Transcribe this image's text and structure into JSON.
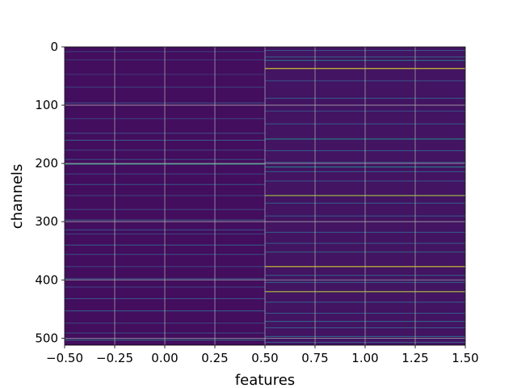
{
  "chart_data": {
    "type": "heatmap",
    "title": "",
    "xlabel": "features",
    "ylabel": "channels",
    "xlim": [
      -0.5,
      1.5
    ],
    "ylim": [
      512,
      0
    ],
    "y_inverted": true,
    "grid": true,
    "colormap": "viridis",
    "x_ticks": [
      -0.5,
      -0.25,
      0.0,
      0.25,
      0.5,
      0.75,
      1.0,
      1.25,
      1.5
    ],
    "x_tick_labels": [
      "−0.50",
      "−0.25",
      "0.00",
      "0.25",
      "0.50",
      "0.75",
      "1.00",
      "1.25",
      "1.50"
    ],
    "y_ticks": [
      0,
      100,
      200,
      300,
      400,
      500
    ],
    "y_tick_labels": [
      "0",
      "100",
      "200",
      "300",
      "400",
      "500"
    ],
    "columns": [
      0,
      1
    ],
    "n_rows": 512,
    "value_range": [
      0,
      1
    ],
    "column_0": {
      "base_value": 0.04,
      "highlight_rows": [
        {
          "row": 8,
          "value": 0.2
        },
        {
          "row": 22,
          "value": 0.18
        },
        {
          "row": 47,
          "value": 0.17
        },
        {
          "row": 69,
          "value": 0.22
        },
        {
          "row": 96,
          "value": 0.26
        },
        {
          "row": 123,
          "value": 0.2
        },
        {
          "row": 148,
          "value": 0.24
        },
        {
          "row": 160,
          "value": 0.3
        },
        {
          "row": 177,
          "value": 0.22
        },
        {
          "row": 193,
          "value": 0.24
        },
        {
          "row": 201,
          "value": 0.55
        },
        {
          "row": 218,
          "value": 0.22
        },
        {
          "row": 236,
          "value": 0.26
        },
        {
          "row": 255,
          "value": 0.2
        },
        {
          "row": 279,
          "value": 0.22
        },
        {
          "row": 297,
          "value": 0.3
        },
        {
          "row": 314,
          "value": 0.26
        },
        {
          "row": 321,
          "value": 0.22
        },
        {
          "row": 340,
          "value": 0.3
        },
        {
          "row": 356,
          "value": 0.24
        },
        {
          "row": 377,
          "value": 0.22
        },
        {
          "row": 398,
          "value": 0.3
        },
        {
          "row": 412,
          "value": 0.22
        },
        {
          "row": 432,
          "value": 0.26
        },
        {
          "row": 453,
          "value": 0.3
        },
        {
          "row": 474,
          "value": 0.22
        },
        {
          "row": 491,
          "value": 0.24
        },
        {
          "row": 503,
          "value": 0.4
        }
      ]
    },
    "column_1": {
      "base_value": 0.06,
      "highlight_rows": [
        {
          "row": 6,
          "value": 0.28
        },
        {
          "row": 17,
          "value": 0.32
        },
        {
          "row": 23,
          "value": 0.42
        },
        {
          "row": 37,
          "value": 0.98
        },
        {
          "row": 58,
          "value": 0.26
        },
        {
          "row": 88,
          "value": 0.3
        },
        {
          "row": 110,
          "value": 0.24
        },
        {
          "row": 132,
          "value": 0.28
        },
        {
          "row": 158,
          "value": 0.5
        },
        {
          "row": 178,
          "value": 0.3
        },
        {
          "row": 198,
          "value": 0.32
        },
        {
          "row": 206,
          "value": 0.48
        },
        {
          "row": 214,
          "value": 0.3
        },
        {
          "row": 230,
          "value": 0.26
        },
        {
          "row": 255,
          "value": 0.88
        },
        {
          "row": 268,
          "value": 0.3
        },
        {
          "row": 290,
          "value": 0.28
        },
        {
          "row": 318,
          "value": 0.3
        },
        {
          "row": 337,
          "value": 0.28
        },
        {
          "row": 352,
          "value": 0.32
        },
        {
          "row": 377,
          "value": 0.95
        },
        {
          "row": 392,
          "value": 0.3
        },
        {
          "row": 404,
          "value": 0.34
        },
        {
          "row": 420,
          "value": 0.9
        },
        {
          "row": 438,
          "value": 0.3
        },
        {
          "row": 457,
          "value": 0.28
        },
        {
          "row": 471,
          "value": 0.34
        },
        {
          "row": 482,
          "value": 0.3
        },
        {
          "row": 497,
          "value": 0.36
        },
        {
          "row": 507,
          "value": 0.3
        }
      ]
    }
  }
}
